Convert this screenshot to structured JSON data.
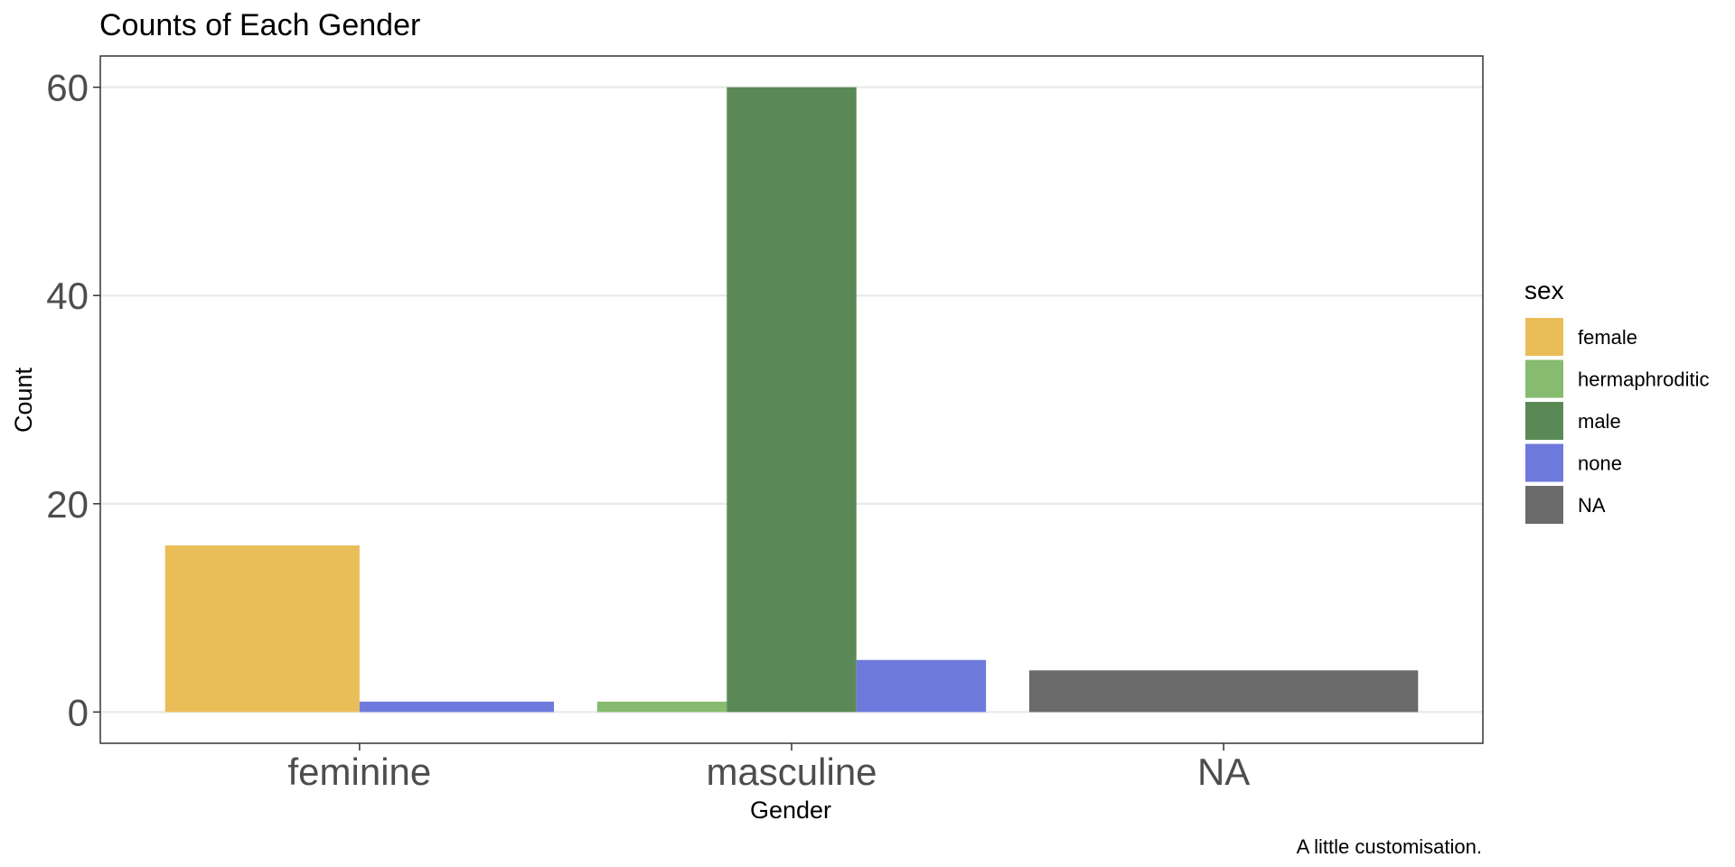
{
  "chart_data": {
    "type": "bar",
    "title": "Counts of Each Gender",
    "xlabel": "Gender",
    "ylabel": "Count",
    "caption": "A little customisation.",
    "categories": [
      "feminine",
      "masculine",
      "NA"
    ],
    "ylim": [
      -3,
      63
    ],
    "yticks": [
      0,
      20,
      40,
      60
    ],
    "grid": true,
    "legend": {
      "title": "sex",
      "placement": "right"
    },
    "series": [
      {
        "name": "female",
        "color": "#E9BD58",
        "values": [
          16,
          null,
          null
        ]
      },
      {
        "name": "hermaphroditic",
        "color": "#87BB6F",
        "values": [
          null,
          1,
          null
        ]
      },
      {
        "name": "male",
        "color": "#5B8955",
        "values": [
          null,
          60,
          null
        ]
      },
      {
        "name": "none",
        "color": "#6E7ADB",
        "values": [
          1,
          5,
          null
        ]
      },
      {
        "name": "NA",
        "color": "#6B6B6B",
        "values": [
          null,
          null,
          4
        ]
      }
    ]
  }
}
